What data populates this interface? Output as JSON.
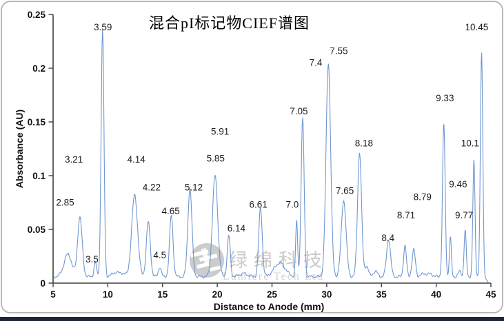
{
  "watermark": {
    "cn": "绿绵科技",
    "en": "Lumiere Tech Ltd"
  },
  "chart_data": {
    "type": "line",
    "title": "混合pI标记物CIEF谱图",
    "xlabel": "Distance to Anode (mm)",
    "ylabel": "Absorbance (AU)",
    "xlim": [
      5,
      45
    ],
    "ylim": [
      0,
      0.25
    ],
    "grid": false,
    "legend": "none",
    "line_color": "#6f97cf",
    "axis_color": "#3f3f3f",
    "baseline_au": 0.006,
    "x_ticks": [
      {
        "v": 5,
        "label": "5"
      },
      {
        "v": 10,
        "label": "10"
      },
      {
        "v": 15,
        "label": "15"
      },
      {
        "v": 20,
        "label": "20"
      },
      {
        "v": 25,
        "label": "25"
      },
      {
        "v": 30,
        "label": "30"
      },
      {
        "v": 35,
        "label": "35"
      },
      {
        "v": 40,
        "label": "40"
      },
      {
        "v": 45,
        "label": "45"
      }
    ],
    "y_ticks": [
      {
        "v": 0,
        "label": "0"
      },
      {
        "v": 0.05,
        "label": "0.05"
      },
      {
        "v": 0.1,
        "label": "0.1"
      },
      {
        "v": 0.15,
        "label": "0.15"
      },
      {
        "v": 0.2,
        "label": "0.2"
      },
      {
        "v": 0.25,
        "label": "0.25"
      }
    ],
    "peaks": [
      {
        "pi": "2.85",
        "mm": 6.35,
        "h": 0.021,
        "w": 0.35
      },
      {
        "pi": "3.21",
        "mm": 7.45,
        "h": 0.055,
        "w": 0.21
      },
      {
        "pi": "3.5",
        "mm": 8.85,
        "h": 0.014,
        "w": 0.11
      },
      {
        "pi": "3.59",
        "mm": 9.52,
        "h": 0.229,
        "w": 0.13
      },
      {
        "pi": null,
        "mm": 10.7,
        "h": 0.004,
        "w": 0.3
      },
      {
        "pi": null,
        "mm": 11.35,
        "h": 0.003,
        "w": 0.25
      },
      {
        "pi": "4.14",
        "mm": 12.45,
        "h": 0.076,
        "w": 0.27
      },
      {
        "pi": "4.22",
        "mm": 13.7,
        "h": 0.051,
        "w": 0.18
      },
      {
        "pi": "4.5",
        "mm": 14.75,
        "h": 0.009,
        "w": 0.13
      },
      {
        "pi": "4.65",
        "mm": 15.8,
        "h": 0.057,
        "w": 0.16
      },
      {
        "pi": "5.12",
        "mm": 17.5,
        "h": 0.082,
        "w": 0.19
      },
      {
        "pi": "5.85 / 5.91",
        "mm": 19.8,
        "h": 0.094,
        "w": 0.24
      },
      {
        "pi": "6.14",
        "mm": 21.05,
        "h": 0.038,
        "w": 0.14
      },
      {
        "pi": null,
        "mm": 22.4,
        "h": 0.003,
        "w": 0.35
      },
      {
        "pi": "6.61",
        "mm": 23.95,
        "h": 0.064,
        "w": 0.16
      },
      {
        "pi": null,
        "mm": 25.7,
        "h": 0.013,
        "w": 0.5
      },
      {
        "pi": "7.0",
        "mm": 27.25,
        "h": 0.052,
        "w": 0.09
      },
      {
        "pi": "7.05",
        "mm": 27.8,
        "h": 0.147,
        "w": 0.14
      },
      {
        "pi": "7.4 / 7.55",
        "mm": 30.15,
        "h": 0.199,
        "w": 0.21
      },
      {
        "pi": "7.65",
        "mm": 31.55,
        "h": 0.071,
        "w": 0.22
      },
      {
        "pi": "8.18",
        "mm": 33.0,
        "h": 0.116,
        "w": 0.18
      },
      {
        "pi": null,
        "mm": 33.65,
        "h": 0.01,
        "w": 0.16
      },
      {
        "pi": null,
        "mm": 34.45,
        "h": 0.005,
        "w": 0.2
      },
      {
        "pi": "8.4",
        "mm": 35.65,
        "h": 0.035,
        "w": 0.18
      },
      {
        "pi": "8.71",
        "mm": 37.15,
        "h": 0.029,
        "w": 0.13
      },
      {
        "pi": "8.79",
        "mm": 37.95,
        "h": 0.025,
        "w": 0.15
      },
      {
        "pi": null,
        "mm": 38.9,
        "h": 0.003,
        "w": 0.25
      },
      {
        "pi": null,
        "mm": 39.5,
        "h": 0.0025,
        "w": 0.2
      },
      {
        "pi": "9.33",
        "mm": 40.7,
        "h": 0.143,
        "w": 0.12
      },
      {
        "pi": "9.46",
        "mm": 41.3,
        "h": 0.037,
        "w": 0.09
      },
      {
        "pi": null,
        "mm": 42.15,
        "h": 0.005,
        "w": 0.13
      },
      {
        "pi": "9.77",
        "mm": 42.65,
        "h": 0.043,
        "w": 0.1
      },
      {
        "pi": "10.1",
        "mm": 43.45,
        "h": 0.108,
        "w": 0.1
      },
      {
        "pi": "10.45",
        "mm": 44.15,
        "h": 0.209,
        "w": 0.11
      }
    ],
    "annotations": [
      {
        "label": "2.85",
        "mm": 6.1,
        "au": 0.075
      },
      {
        "label": "3.21",
        "mm": 6.9,
        "au": 0.115
      },
      {
        "label": "3.5",
        "mm": 8.55,
        "au": 0.022
      },
      {
        "label": "3.59",
        "mm": 9.55,
        "au": 0.238
      },
      {
        "label": "4.14",
        "mm": 12.6,
        "au": 0.115
      },
      {
        "label": "4.22",
        "mm": 14.0,
        "au": 0.089
      },
      {
        "label": "4.5",
        "mm": 14.75,
        "au": 0.026
      },
      {
        "label": "4.65",
        "mm": 15.75,
        "au": 0.067
      },
      {
        "label": "5.12",
        "mm": 17.85,
        "au": 0.089
      },
      {
        "label": "5.85",
        "mm": 19.85,
        "au": 0.116
      },
      {
        "label": "5.91",
        "mm": 20.25,
        "au": 0.141
      },
      {
        "label": "6.14",
        "mm": 21.75,
        "au": 0.051
      },
      {
        "label": "6.61",
        "mm": 23.75,
        "au": 0.073
      },
      {
        "label": "7.0",
        "mm": 26.85,
        "au": 0.073
      },
      {
        "label": "7.05",
        "mm": 27.45,
        "au": 0.16
      },
      {
        "label": "7.4",
        "mm": 29.0,
        "au": 0.205
      },
      {
        "label": "7.55",
        "mm": 31.1,
        "au": 0.216
      },
      {
        "label": "7.65",
        "mm": 31.65,
        "au": 0.086
      },
      {
        "label": "8.18",
        "mm": 33.4,
        "au": 0.13
      },
      {
        "label": "8.4",
        "mm": 35.6,
        "au": 0.042
      },
      {
        "label": "8.71",
        "mm": 37.25,
        "au": 0.063
      },
      {
        "label": "8.79",
        "mm": 38.75,
        "au": 0.08
      },
      {
        "label": "9.33",
        "mm": 40.8,
        "au": 0.172
      },
      {
        "label": "9.46",
        "mm": 42.0,
        "au": 0.092
      },
      {
        "label": "9.77",
        "mm": 42.55,
        "au": 0.063
      },
      {
        "label": "10.1",
        "mm": 43.1,
        "au": 0.13
      },
      {
        "label": "10.45",
        "mm": 43.7,
        "au": 0.238
      }
    ]
  }
}
